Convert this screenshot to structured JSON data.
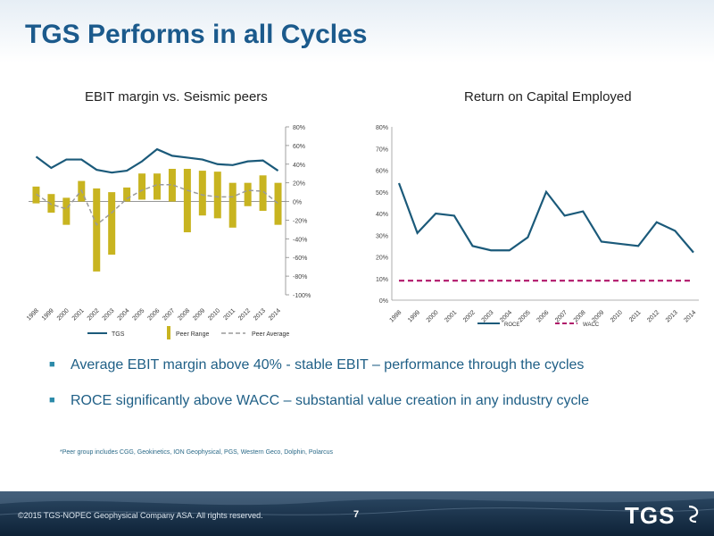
{
  "title": "TGS Performs in all Cycles",
  "chart_data": [
    {
      "type": "bar",
      "title": "EBIT margin vs. Seismic peers",
      "categories": [
        "1998",
        "1999",
        "2000",
        "2001",
        "2002",
        "2003",
        "2004",
        "2005",
        "2006",
        "2007",
        "2008",
        "2009",
        "2010",
        "2011",
        "2012",
        "2013",
        "2014"
      ],
      "ylim": [
        -100,
        80
      ],
      "yticks": [
        80,
        60,
        40,
        20,
        0,
        -20,
        -40,
        -60,
        -80,
        -100
      ],
      "ytick_labels": [
        "80%",
        "60%",
        "40%",
        "20%",
        "0%",
        "-20%",
        "-40%",
        "-60%",
        "-80%",
        "-100%"
      ],
      "y_axis_side": "right",
      "legend": [
        "TGS",
        "Peer Range",
        "Peer Average"
      ],
      "legend_position": "bottom",
      "series": [
        {
          "name": "TGS",
          "type": "line",
          "color": "#1b5a7a",
          "values": [
            48,
            36,
            45,
            45,
            34,
            31,
            33,
            43,
            56,
            49,
            47,
            45,
            40,
            39,
            43,
            44,
            33
          ]
        },
        {
          "name": "Peer Range",
          "type": "range-bar",
          "color": "#c8b420",
          "ranges": [
            [
              -2,
              16
            ],
            [
              -12,
              8
            ],
            [
              -25,
              4
            ],
            [
              0,
              22
            ],
            [
              -75,
              14
            ],
            [
              -57,
              10
            ],
            [
              0,
              15
            ],
            [
              2,
              30
            ],
            [
              2,
              30
            ],
            [
              0,
              35
            ],
            [
              -33,
              35
            ],
            [
              -15,
              33
            ],
            [
              -18,
              32
            ],
            [
              -28,
              20
            ],
            [
              -5,
              20
            ],
            [
              -10,
              28
            ],
            [
              -25,
              20
            ]
          ]
        },
        {
          "name": "Peer Average",
          "type": "dashed-line",
          "color": "#9a9a9a",
          "values": [
            8,
            -3,
            -8,
            12,
            -25,
            -12,
            3,
            12,
            18,
            18,
            12,
            7,
            5,
            5,
            12,
            11,
            -2
          ]
        }
      ]
    },
    {
      "type": "line",
      "title": "Return on Capital Employed",
      "categories": [
        "1998",
        "1999",
        "2000",
        "2001",
        "2002",
        "2003",
        "2004",
        "2005",
        "2006",
        "2007",
        "2008",
        "2009",
        "2010",
        "2011",
        "2012",
        "2013",
        "2014"
      ],
      "ylim": [
        0,
        80
      ],
      "yticks": [
        0,
        10,
        20,
        30,
        40,
        50,
        60,
        70,
        80
      ],
      "ytick_labels": [
        "0%",
        "10%",
        "20%",
        "30%",
        "40%",
        "50%",
        "60%",
        "70%",
        "80%"
      ],
      "legend": [
        "ROCE",
        "WACC"
      ],
      "legend_position": "bottom",
      "series": [
        {
          "name": "ROCE",
          "color": "#1b5a7a",
          "values": [
            54,
            31,
            40,
            39,
            25,
            23,
            23,
            29,
            50,
            39,
            41,
            27,
            26,
            25,
            36,
            32,
            22
          ]
        },
        {
          "name": "WACC",
          "color": "#b0176a",
          "dashed": true,
          "values": [
            9,
            9,
            9,
            9,
            9,
            9,
            9,
            9,
            9,
            9,
            9,
            9,
            9,
            9,
            9,
            9,
            9
          ]
        }
      ]
    }
  ],
  "bullets": [
    "Average EBIT margin above 40% - stable EBIT – performance through the cycles",
    "ROCE significantly above WACC – substantial value creation in any industry cycle"
  ],
  "bullet_marker": "■",
  "footnote": "*Peer group includes CGG, Geokinetics, ION Geophysical, PGS, Western Geco, Dolphin, Polarcus",
  "footer": {
    "copyright": "©2015 TGS-NOPEC Geophysical Company ASA. All rights reserved.",
    "page_number": "7",
    "logo_text": "TGS"
  }
}
